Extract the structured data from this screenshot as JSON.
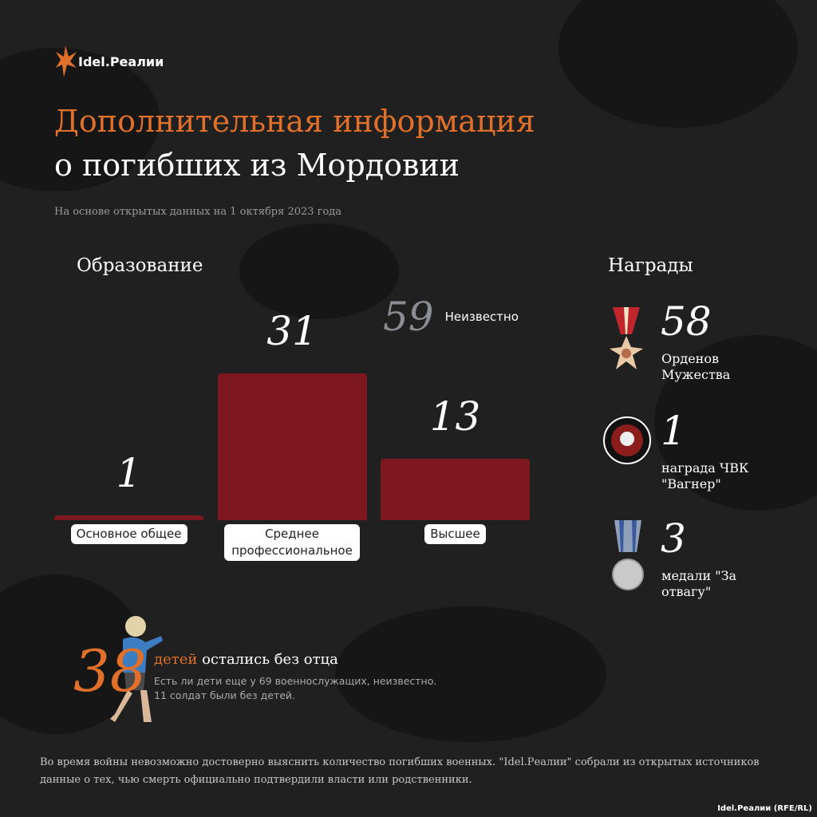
{
  "header": {
    "logo": "Idel.Реалии",
    "title_line1": "Дополнительная информация",
    "title_line2": "о погибших из Мордовии",
    "subtitle": "На основе открытых данных на 1 октября 2023 года"
  },
  "chart_data": {
    "type": "bar",
    "title": "Образование",
    "categories": [
      "Основное общее",
      "Среднее профессиональное",
      "Высшее"
    ],
    "values": [
      1,
      31,
      13
    ],
    "color": "#7d1820"
  },
  "education_unknown": {
    "value": "59",
    "label": "Неизвестно"
  },
  "awards": {
    "title": "Награды",
    "items": [
      {
        "value": "58",
        "label": "Орденов Мужества"
      },
      {
        "value": "1",
        "label": "награда ЧВК \"Вагнер\""
      },
      {
        "value": "3",
        "label": "медали \"За отвагу\""
      }
    ]
  },
  "children": {
    "value": "38",
    "word": "детей",
    "text": "остались без отца",
    "note_line1": "Есть ли дети еще у 69 военнослужащих, неизвестно.",
    "note_line2": "11 солдат были без детей."
  },
  "footer": {
    "note": "Во время войны невозможно достоверно выяснить количество погибших военных. \"Idel.Реалии\" собрали из открытых источников данные о тех, чью смерть официально подтвердили власти или родственники.",
    "credit": "Idel.Реалии (RFE/RL)"
  }
}
